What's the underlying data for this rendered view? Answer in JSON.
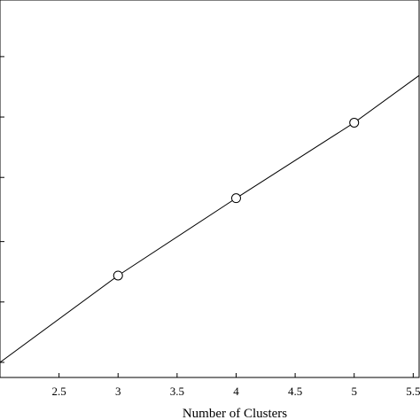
{
  "chart_data": {
    "type": "line",
    "title": "",
    "xlabel": "Number of Clusters",
    "ylabel": "",
    "xlim": [
      2.0,
      5.55
    ],
    "ylim": [
      0.0,
      1.0
    ],
    "x_ticks": [
      2.5,
      3,
      3.5,
      4,
      4.5,
      5,
      5.5
    ],
    "x_tick_labels": [
      "2.5",
      "3",
      "3.5",
      "4",
      "4.5",
      "5",
      "5.5"
    ],
    "y_ticks": [
      0.04,
      0.2,
      0.36,
      0.53,
      0.69,
      0.85
    ],
    "series": [
      {
        "line_x": [
          2,
          3,
          4,
          5,
          5.55
        ],
        "line_y": [
          0.04,
          0.27,
          0.475,
          0.675,
          0.8
        ],
        "marker_x": [
          3,
          4,
          5
        ],
        "marker_y": [
          0.27,
          0.475,
          0.675
        ],
        "marker": "circle",
        "color": "#000000"
      }
    ],
    "grid": false,
    "legend": "none"
  }
}
